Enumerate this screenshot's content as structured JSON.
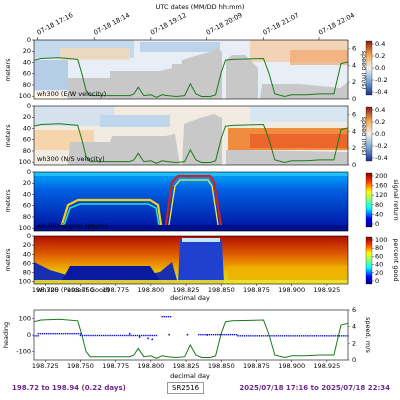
{
  "header": {
    "top_axis_title": "UTC dates (MM/DD hh:mm)"
  },
  "top_ticks": [
    "07-18 17:16",
    "07-18 18:14",
    "07-18 19:12",
    "07-18 20:09",
    "07-18 21:07",
    "07-18 22:04"
  ],
  "colors": {
    "ship_speed_line": "#1a7a1a",
    "heading_points": "#1010d0",
    "footer_text": "#6a2a8a",
    "no_data": "#c8c8c8"
  },
  "chart_data": [
    {
      "type": "heatmap",
      "label": "wh300 (E/W velocity)",
      "ylabel": "meters",
      "yticks": [
        20,
        40,
        60,
        80,
        100
      ],
      "right_ticks": [
        0,
        2,
        4,
        6
      ],
      "right_axis_label": "speed (m/s)",
      "colorbar_ticks": [
        "0.4",
        "0.2",
        "0.0",
        "-0.2",
        "-0.4"
      ],
      "colorbar_label": "m/s",
      "colormap": "diverging"
    },
    {
      "type": "heatmap",
      "label": "wh300 (N/S velocity)",
      "ylabel": "meters",
      "yticks": [
        20,
        40,
        60,
        80,
        100
      ],
      "right_ticks": [
        0,
        2,
        4,
        6
      ],
      "right_axis_label": "speed (m/s)",
      "colorbar_ticks": [
        "0.4",
        "0.2",
        "0.0",
        "-0.2",
        "-0.4"
      ],
      "colorbar_label": "m/s",
      "colormap": "diverging"
    },
    {
      "type": "heatmap",
      "label": "wh300 (signal return)",
      "ylabel": "meters",
      "yticks": [
        20,
        40,
        60,
        80,
        100
      ],
      "colorbar_ticks": [
        "200",
        "160",
        "120",
        "80",
        "40",
        "0"
      ],
      "colorbar_label": "signal return",
      "colormap": "jet"
    },
    {
      "type": "heatmap",
      "label": "wh300 (Percent Good)",
      "ylabel": "meters",
      "yticks": [
        20,
        40,
        60,
        80,
        100
      ],
      "colorbar_ticks": [
        "100",
        "80",
        "60",
        "40",
        "20",
        "0"
      ],
      "colorbar_label": "percent good",
      "colormap": "jet",
      "xlabel": "decimal day",
      "xticks": [
        "198.725",
        "198.750",
        "198.775",
        "198.800",
        "198.825",
        "198.850",
        "198.875",
        "198.900",
        "198.925"
      ]
    },
    {
      "type": "scatter",
      "ylabel_left": "heading",
      "ylabel_right": "speed, m/s",
      "yticks_left": [
        "100",
        "0",
        "-100"
      ],
      "yticks_right": [
        "6",
        "4",
        "2",
        "0"
      ],
      "xlabel": "decimal day",
      "xticks": [
        "198.725",
        "198.750",
        "198.775",
        "198.800",
        "198.825",
        "198.850",
        "198.875",
        "198.900",
        "198.925"
      ],
      "xlim": [
        198.717,
        198.94
      ],
      "ylim_left": [
        -150,
        150
      ],
      "ylim_right": [
        0,
        6
      ],
      "ship_speed": {
        "x": [
          198.717,
          198.722,
          198.735,
          198.748,
          198.751,
          198.754,
          198.757,
          198.785,
          198.788,
          198.791,
          198.795,
          198.8,
          198.804,
          198.808,
          198.812,
          198.818,
          198.824,
          198.828,
          198.832,
          198.836,
          198.842,
          198.846,
          198.85,
          198.853,
          198.858,
          198.88,
          198.884,
          198.888,
          198.895,
          198.9,
          198.91,
          198.92,
          198.93,
          198.935,
          198.94
        ],
        "y": [
          4.6,
          4.8,
          4.9,
          4.7,
          3.0,
          1.0,
          0.4,
          0.4,
          0.6,
          1.4,
          0.4,
          0.5,
          0.2,
          0.5,
          0.4,
          0.3,
          0.4,
          1.8,
          0.6,
          0.3,
          0.3,
          0.5,
          3.2,
          4.6,
          4.7,
          4.8,
          3.0,
          0.6,
          0.3,
          0.5,
          0.5,
          0.6,
          0.6,
          4.2,
          4.4
        ]
      },
      "heading": {
        "segments": [
          {
            "x0": 198.717,
            "x1": 198.72,
            "y": -5
          },
          {
            "x0": 198.72,
            "x1": 198.75,
            "y": 8
          },
          {
            "x0": 198.75,
            "x1": 198.805,
            "y": -3
          },
          {
            "x0": 198.808,
            "x1": 198.814,
            "y": 110
          },
          {
            "x0": 198.834,
            "x1": 198.862,
            "y": 2
          },
          {
            "x0": 198.862,
            "x1": 198.94,
            "y": -5
          }
        ],
        "scatter": [
          [
            198.785,
            7
          ],
          [
            198.792,
            -12
          ],
          [
            198.798,
            -20
          ],
          [
            198.801,
            -26
          ],
          [
            198.813,
            2
          ],
          [
            198.826,
            2
          ],
          [
            198.84,
            0
          ]
        ]
      }
    }
  ],
  "footer": {
    "left": "198.72 to 198.94 (0.22 days)",
    "center": "SR2516",
    "right": "2025/07/18 17:16 to 2025/07/18 22:34"
  }
}
